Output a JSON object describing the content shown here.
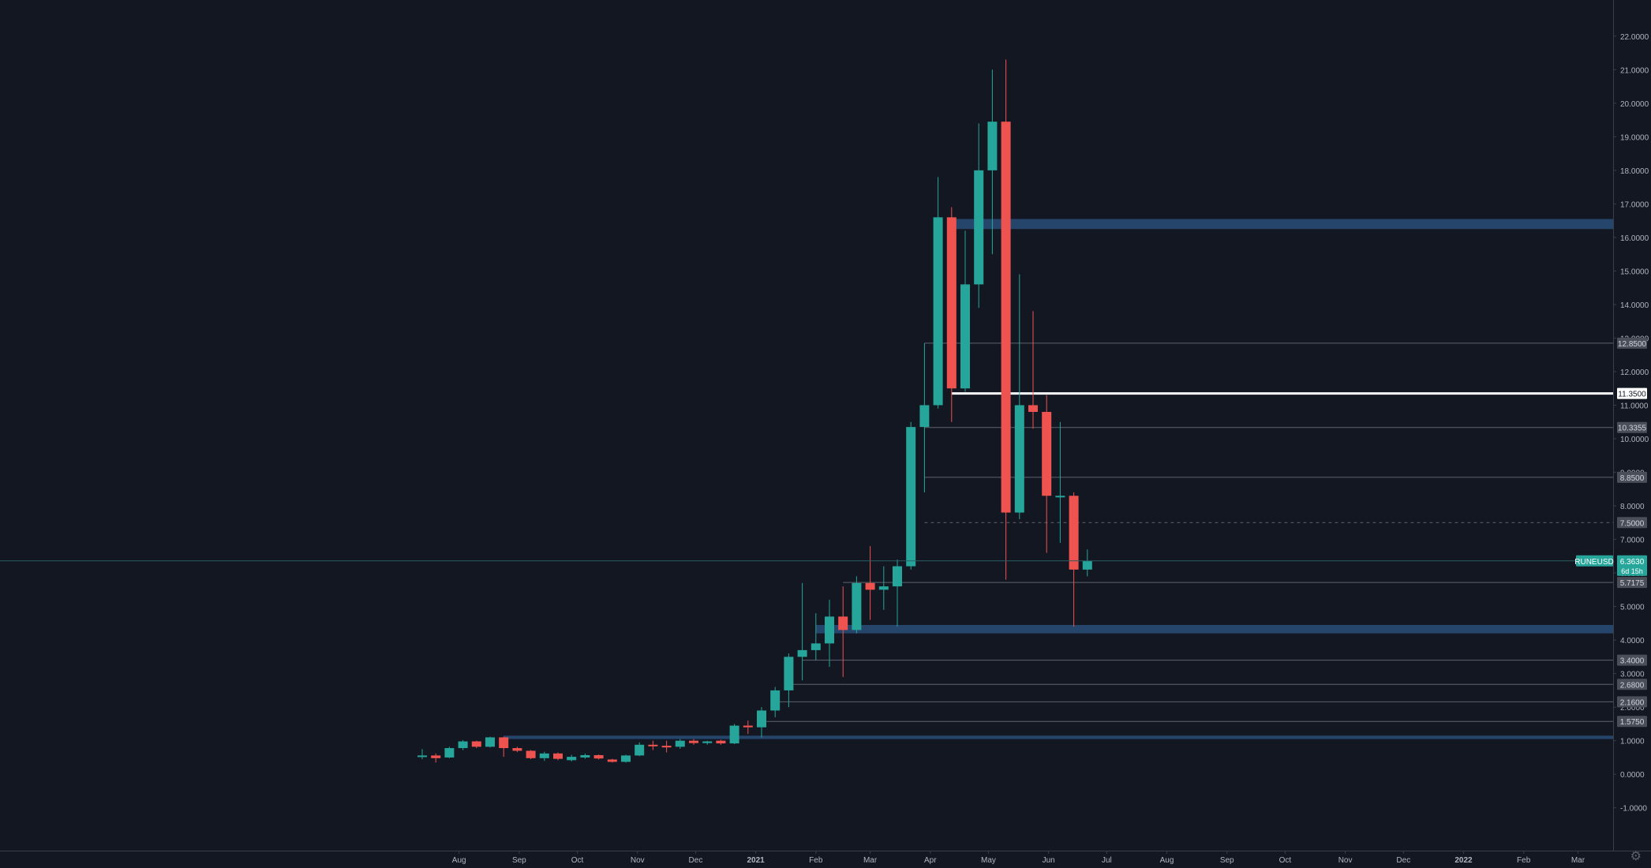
{
  "chart_data": {
    "type": "candlestick",
    "symbol": "RUNEUSD",
    "last_price": "6.3630",
    "countdown": "6d 15h",
    "colors": {
      "background": "#131722",
      "up": "#26a69a",
      "down": "#ef5350",
      "zone": "#2a4e78",
      "grid_line": "#787b86",
      "axis_text": "#b2b5be",
      "key_level": "#ffffff"
    },
    "y_axis": {
      "min": -1.9,
      "max": 22.7,
      "ticks": [
        "22.0000",
        "21.0000",
        "20.0000",
        "19.0000",
        "18.0000",
        "17.0000",
        "16.0000",
        "15.0000",
        "14.0000",
        "13.0000",
        "12.0000",
        "11.0000",
        "10.0000",
        "9.0000",
        "8.0000",
        "7.0000",
        "6.0000",
        "5.0000",
        "4.0000",
        "3.0000",
        "2.0000",
        "1.0000",
        "0.0000",
        "-1.0000"
      ]
    },
    "x_axis": {
      "first_week": "2020-07-13",
      "last_week": "2022-03-21",
      "labels": [
        {
          "text": "Aug",
          "date": "2020-08-01"
        },
        {
          "text": "Sep",
          "date": "2020-09-01"
        },
        {
          "text": "Oct",
          "date": "2020-10-01"
        },
        {
          "text": "Nov",
          "date": "2020-11-01"
        },
        {
          "text": "Dec",
          "date": "2020-12-01"
        },
        {
          "text": "2021",
          "date": "2021-01-01",
          "bold": true
        },
        {
          "text": "Feb",
          "date": "2021-02-01"
        },
        {
          "text": "Mar",
          "date": "2021-03-01"
        },
        {
          "text": "Apr",
          "date": "2021-04-01"
        },
        {
          "text": "May",
          "date": "2021-05-01"
        },
        {
          "text": "Jun",
          "date": "2021-06-01"
        },
        {
          "text": "Jul",
          "date": "2021-07-01"
        },
        {
          "text": "Aug",
          "date": "2021-08-01"
        },
        {
          "text": "Sep",
          "date": "2021-09-01"
        },
        {
          "text": "Oct",
          "date": "2021-10-01"
        },
        {
          "text": "Nov",
          "date": "2021-11-01"
        },
        {
          "text": "Dec",
          "date": "2021-12-01"
        },
        {
          "text": "2022",
          "date": "2022-01-01",
          "bold": true
        },
        {
          "text": "Feb",
          "date": "2022-02-01"
        },
        {
          "text": "Mar",
          "date": "2022-03-01"
        }
      ]
    },
    "candles": [
      {
        "date": "2020-07-13",
        "o": 0.55,
        "h": 0.75,
        "l": 0.45,
        "c": 0.56
      },
      {
        "date": "2020-07-20",
        "o": 0.56,
        "h": 0.62,
        "l": 0.35,
        "c": 0.48
      },
      {
        "date": "2020-07-27",
        "o": 0.5,
        "h": 0.82,
        "l": 0.48,
        "c": 0.78
      },
      {
        "date": "2020-08-03",
        "o": 0.78,
        "h": 1.02,
        "l": 0.72,
        "c": 0.98
      },
      {
        "date": "2020-08-10",
        "o": 0.98,
        "h": 1.0,
        "l": 0.78,
        "c": 0.82
      },
      {
        "date": "2020-08-17",
        "o": 0.82,
        "h": 1.12,
        "l": 0.8,
        "c": 1.1
      },
      {
        "date": "2020-08-24",
        "o": 1.1,
        "h": 1.12,
        "l": 0.52,
        "c": 0.78
      },
      {
        "date": "2020-08-31",
        "o": 0.78,
        "h": 0.82,
        "l": 0.66,
        "c": 0.7
      },
      {
        "date": "2020-09-07",
        "o": 0.7,
        "h": 0.72,
        "l": 0.45,
        "c": 0.48
      },
      {
        "date": "2020-09-14",
        "o": 0.48,
        "h": 0.67,
        "l": 0.4,
        "c": 0.62
      },
      {
        "date": "2020-09-21",
        "o": 0.62,
        "h": 0.65,
        "l": 0.42,
        "c": 0.46
      },
      {
        "date": "2020-09-28",
        "o": 0.42,
        "h": 0.58,
        "l": 0.38,
        "c": 0.52
      },
      {
        "date": "2020-10-05",
        "o": 0.5,
        "h": 0.62,
        "l": 0.46,
        "c": 0.57
      },
      {
        "date": "2020-10-12",
        "o": 0.57,
        "h": 0.59,
        "l": 0.44,
        "c": 0.47
      },
      {
        "date": "2020-10-19",
        "o": 0.44,
        "h": 0.46,
        "l": 0.35,
        "c": 0.37
      },
      {
        "date": "2020-10-26",
        "o": 0.37,
        "h": 0.58,
        "l": 0.35,
        "c": 0.56
      },
      {
        "date": "2020-11-02",
        "o": 0.56,
        "h": 0.95,
        "l": 0.54,
        "c": 0.88
      },
      {
        "date": "2020-11-09",
        "o": 0.88,
        "h": 1.0,
        "l": 0.72,
        "c": 0.85
      },
      {
        "date": "2020-11-16",
        "o": 0.85,
        "h": 1.0,
        "l": 0.65,
        "c": 0.8
      },
      {
        "date": "2020-11-23",
        "o": 0.82,
        "h": 1.05,
        "l": 0.76,
        "c": 1.0
      },
      {
        "date": "2020-11-30",
        "o": 1.0,
        "h": 1.05,
        "l": 0.88,
        "c": 0.93
      },
      {
        "date": "2020-12-07",
        "o": 0.93,
        "h": 1.0,
        "l": 0.88,
        "c": 0.98
      },
      {
        "date": "2020-12-14",
        "o": 1.0,
        "h": 1.03,
        "l": 0.88,
        "c": 0.92
      },
      {
        "date": "2020-12-21",
        "o": 0.92,
        "h": 1.5,
        "l": 0.9,
        "c": 1.45
      },
      {
        "date": "2020-12-28",
        "o": 1.45,
        "h": 1.6,
        "l": 1.2,
        "c": 1.4
      },
      {
        "date": "2021-01-04",
        "o": 1.4,
        "h": 2.0,
        "l": 1.1,
        "c": 1.9
      },
      {
        "date": "2021-01-11",
        "o": 1.9,
        "h": 2.6,
        "l": 1.7,
        "c": 2.5
      },
      {
        "date": "2021-01-18",
        "o": 2.5,
        "h": 3.6,
        "l": 2.0,
        "c": 3.5
      },
      {
        "date": "2021-01-25",
        "o": 3.5,
        "h": 5.7,
        "l": 2.8,
        "c": 3.7
      },
      {
        "date": "2021-02-01",
        "o": 3.7,
        "h": 4.8,
        "l": 3.4,
        "c": 3.9
      },
      {
        "date": "2021-02-08",
        "o": 3.9,
        "h": 5.2,
        "l": 3.2,
        "c": 4.7
      },
      {
        "date": "2021-02-15",
        "o": 4.7,
        "h": 5.6,
        "l": 2.9,
        "c": 4.3
      },
      {
        "date": "2021-02-22",
        "o": 4.3,
        "h": 5.9,
        "l": 4.2,
        "c": 5.7
      },
      {
        "date": "2021-03-01",
        "o": 5.7,
        "h": 6.8,
        "l": 4.6,
        "c": 5.5
      },
      {
        "date": "2021-03-08",
        "o": 5.5,
        "h": 6.2,
        "l": 4.9,
        "c": 5.6
      },
      {
        "date": "2021-03-15",
        "o": 5.6,
        "h": 6.4,
        "l": 4.4,
        "c": 6.2
      },
      {
        "date": "2021-03-22",
        "o": 6.2,
        "h": 10.5,
        "l": 6.1,
        "c": 10.35
      },
      {
        "date": "2021-03-29",
        "o": 10.35,
        "h": 12.85,
        "l": 8.4,
        "c": 11.0
      },
      {
        "date": "2021-04-05",
        "o": 11.0,
        "h": 17.8,
        "l": 10.9,
        "c": 16.6
      },
      {
        "date": "2021-04-12",
        "o": 16.6,
        "h": 16.9,
        "l": 10.5,
        "c": 11.5
      },
      {
        "date": "2021-04-19",
        "o": 11.5,
        "h": 16.2,
        "l": 11.4,
        "c": 14.6
      },
      {
        "date": "2021-04-26",
        "o": 14.6,
        "h": 19.4,
        "l": 13.9,
        "c": 18.0
      },
      {
        "date": "2021-05-03",
        "o": 18.0,
        "h": 21.0,
        "l": 15.5,
        "c": 19.45
      },
      {
        "date": "2021-05-10",
        "o": 19.45,
        "h": 21.3,
        "l": 5.8,
        "c": 7.8
      },
      {
        "date": "2021-05-17",
        "o": 7.8,
        "h": 14.9,
        "l": 7.6,
        "c": 11.0
      },
      {
        "date": "2021-05-24",
        "o": 11.0,
        "h": 13.8,
        "l": 10.3,
        "c": 10.8
      },
      {
        "date": "2021-05-31",
        "o": 10.8,
        "h": 11.3,
        "l": 6.6,
        "c": 8.3
      },
      {
        "date": "2021-06-07",
        "o": 8.3,
        "h": 10.5,
        "l": 6.9,
        "c": 8.3
      },
      {
        "date": "2021-06-14",
        "o": 8.3,
        "h": 8.4,
        "l": 4.4,
        "c": 6.1
      },
      {
        "date": "2021-06-21",
        "o": 6.1,
        "h": 6.7,
        "l": 5.9,
        "c": 6.36
      }
    ],
    "zones": [
      {
        "from_date": "2021-04-12",
        "top": 16.55,
        "bottom": 16.25
      },
      {
        "from_date": "2021-02-01",
        "top": 4.45,
        "bottom": 4.2
      },
      {
        "from_date": "2020-08-24",
        "top": 1.15,
        "bottom": 1.05
      }
    ],
    "levels": [
      {
        "value": 12.85,
        "label": "12.8500",
        "from_date": "2021-03-29"
      },
      {
        "value": 11.35,
        "label": "11.3500",
        "from_date": "2021-04-12",
        "key": true
      },
      {
        "value": 10.3355,
        "label": "10.3355",
        "from_date": "2021-03-29"
      },
      {
        "value": 8.85,
        "label": "8.8500",
        "from_date": "2021-03-29"
      },
      {
        "value": 7.5,
        "label": "7.5000",
        "from_date": "2021-03-29",
        "dashed": true
      },
      {
        "value": 5.7175,
        "label": "5.7175",
        "from_date": "2021-02-15"
      },
      {
        "value": 3.4,
        "label": "3.4000",
        "from_date": "2021-01-25"
      },
      {
        "value": 2.68,
        "label": "2.6800",
        "from_date": "2021-01-18"
      },
      {
        "value": 2.16,
        "label": "2.1600",
        "from_date": "2021-01-11"
      },
      {
        "value": 1.575,
        "label": "1.5750",
        "from_date": "2021-01-04"
      }
    ]
  },
  "footer": {
    "settings_icon": "gear-icon"
  }
}
